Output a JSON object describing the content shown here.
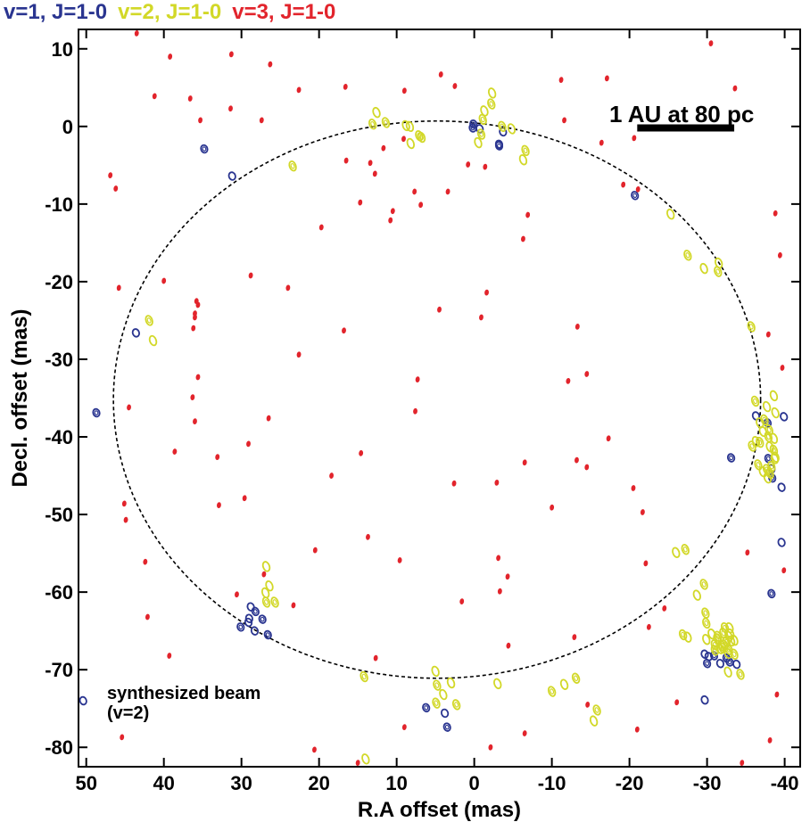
{
  "chart_data": {
    "type": "scatter",
    "xlabel": "R.A offset (mas)",
    "ylabel": "Decl. offset (mas)",
    "xlim": [
      51,
      -42
    ],
    "ylim": [
      -82.5,
      12.5
    ],
    "xticks": [
      50,
      40,
      30,
      20,
      10,
      0,
      -10,
      -20,
      -30,
      -40
    ],
    "yticks": [
      10,
      0,
      -10,
      -20,
      -30,
      -40,
      -50,
      -60,
      -70,
      -80
    ],
    "grid": false,
    "legend_position": "top-left",
    "scale_bar": {
      "label": "1 AU at 80 pc",
      "length_mas": 12.5,
      "x_start": -21,
      "y": -0.2
    },
    "beam_note": {
      "line1": "synthesized beam",
      "line2": "(v=2)"
    },
    "ring": {
      "center": [
        4.8,
        -35.2
      ],
      "rx_mas": 41.7,
      "ry_mas": 35.9,
      "color": "#000000"
    },
    "series": [
      {
        "name": "v=1, J=1-0",
        "color": "#2a3590",
        "points": [
          [
            0.2,
            -0.2
          ],
          [
            -0.7,
            -0.3
          ],
          [
            0.1,
            0.3
          ],
          [
            -3.7,
            -0.7
          ],
          [
            -3.2,
            -2.5
          ],
          [
            -3.2,
            -2.3
          ],
          [
            34.8,
            -2.9
          ],
          [
            31.2,
            -6.4
          ],
          [
            -20.7,
            -8.9
          ],
          [
            43.6,
            -26.6
          ],
          [
            48.7,
            -36.9
          ],
          [
            -36.3,
            -37.3
          ],
          [
            -37.8,
            -38.2
          ],
          [
            -39.9,
            -37.4
          ],
          [
            -37.9,
            -42.8
          ],
          [
            -38.3,
            -44.1
          ],
          [
            -38.4,
            -45.3
          ],
          [
            -39.6,
            -46.5
          ],
          [
            -33.1,
            -42.7
          ],
          [
            -39.6,
            -53.6
          ],
          [
            -38.3,
            -60.2
          ],
          [
            28.8,
            -61.9
          ],
          [
            28.2,
            -62.5
          ],
          [
            29.0,
            -63.4
          ],
          [
            27.3,
            -63.5
          ],
          [
            28.3,
            -65.0
          ],
          [
            26.6,
            -65.5
          ],
          [
            29.1,
            -63.9
          ],
          [
            30.1,
            -64.5
          ],
          [
            -29.7,
            -68.0
          ],
          [
            -30.9,
            -68.2
          ],
          [
            -31.7,
            -69.2
          ],
          [
            -32.9,
            -69.0
          ],
          [
            -33.8,
            -69.3
          ],
          [
            -32.5,
            -68.5
          ],
          [
            -30.2,
            -68.3
          ],
          [
            -30.0,
            -69.2
          ],
          [
            -29.7,
            -73.9
          ],
          [
            6.2,
            -74.9
          ],
          [
            3.8,
            -75.6
          ],
          [
            3.5,
            -77.4
          ],
          [
            50.4,
            -74.0
          ]
        ]
      },
      {
        "name": "v=2, J=1-0",
        "color": "#d2d828",
        "points": [
          [
            13.1,
            0.3
          ],
          [
            12.6,
            1.8
          ],
          [
            11.4,
            0.5
          ],
          [
            8.8,
            0.1
          ],
          [
            7.1,
            -1.2
          ],
          [
            8.2,
            -2.2
          ],
          [
            6.8,
            -1.4
          ],
          [
            8.3,
            0.0
          ],
          [
            -1.1,
            0.9
          ],
          [
            -1.3,
            2.0
          ],
          [
            -2.2,
            2.9
          ],
          [
            -2.3,
            4.3
          ],
          [
            -0.9,
            -1.0
          ],
          [
            -0.5,
            -2.1
          ],
          [
            -3.6,
            0.0
          ],
          [
            -4.8,
            -0.3
          ],
          [
            -6.6,
            -3.1
          ],
          [
            -6.3,
            -4.3
          ],
          [
            23.4,
            -5.1
          ],
          [
            -25.3,
            -11.3
          ],
          [
            -27.5,
            -16.6
          ],
          [
            -29.6,
            -18.3
          ],
          [
            -31.4,
            -18.7
          ],
          [
            -31.5,
            -17.6
          ],
          [
            41.9,
            -25.0
          ],
          [
            41.4,
            -27.6
          ],
          [
            -35.7,
            -25.8
          ],
          [
            -38.8,
            -42.6
          ],
          [
            -38.1,
            -44.7
          ],
          [
            -37.2,
            -44.5
          ],
          [
            -36.6,
            -43.6
          ],
          [
            -36.8,
            -38.2
          ],
          [
            -36.2,
            -35.4
          ],
          [
            -38.6,
            -34.7
          ],
          [
            -37.4,
            -37.8
          ],
          [
            -36.3,
            -40.6
          ],
          [
            -35.8,
            -41.2
          ],
          [
            -38.1,
            -41.3
          ],
          [
            -38.3,
            -43.8
          ],
          [
            -37.7,
            -36.1
          ],
          [
            -38.0,
            -39.1
          ],
          [
            -38.8,
            -36.9
          ],
          [
            -37.9,
            -40.0
          ],
          [
            -37.2,
            -39.3
          ],
          [
            -36.8,
            -40.7
          ],
          [
            -38.6,
            -40.2
          ],
          [
            -38.6,
            -41.7
          ],
          [
            -38.7,
            -42.8
          ],
          [
            -37.7,
            -44.2
          ],
          [
            -37.8,
            -45.3
          ],
          [
            -29.6,
            -59.0
          ],
          [
            -28.7,
            -60.4
          ],
          [
            -29.8,
            -62.7
          ],
          [
            -29.9,
            -66.1
          ],
          [
            -31.3,
            -66.0
          ],
          [
            -32.2,
            -66.8
          ],
          [
            -32.1,
            -65.3
          ],
          [
            -31.9,
            -66.9
          ],
          [
            -31.0,
            -67.5
          ],
          [
            -32.7,
            -67.9
          ],
          [
            -33.5,
            -68.0
          ],
          [
            -32.8,
            -65.7
          ],
          [
            -32.5,
            -66.4
          ],
          [
            -32.9,
            -64.6
          ],
          [
            -31.4,
            -65.7
          ],
          [
            -33.1,
            -66.3
          ],
          [
            -32.0,
            -67.2
          ],
          [
            -31.7,
            -67.3
          ],
          [
            -32.8,
            -67.4
          ],
          [
            -33.5,
            -66.2
          ],
          [
            -29.9,
            -64.0
          ],
          [
            -33.0,
            -65.4
          ],
          [
            -32.3,
            -64.6
          ],
          [
            -30.6,
            -65.4
          ],
          [
            -31.0,
            -66.8
          ],
          [
            -32.7,
            -70.3
          ],
          [
            -34.3,
            -70.6
          ],
          [
            -27.5,
            -65.8
          ],
          [
            -26.9,
            -65.5
          ],
          [
            -26.0,
            -54.9
          ],
          [
            -27.2,
            -54.5
          ],
          [
            26.9,
            -60.1
          ],
          [
            26.8,
            -61.3
          ],
          [
            26.4,
            -59.2
          ],
          [
            25.7,
            -61.3
          ],
          [
            26.8,
            -56.7
          ],
          [
            14.2,
            -70.9
          ],
          [
            5.0,
            -70.2
          ],
          [
            4.8,
            -72.0
          ],
          [
            4.0,
            -73.2
          ],
          [
            4.9,
            -74.3
          ],
          [
            3.0,
            -71.7
          ],
          [
            2.3,
            -74.5
          ],
          [
            -3.0,
            -71.8
          ],
          [
            -10.0,
            -72.8
          ],
          [
            -11.6,
            -71.9
          ],
          [
            -13.1,
            -71.1
          ],
          [
            -15.4,
            -76.6
          ],
          [
            -15.8,
            -75.2
          ],
          [
            14.0,
            -81.5
          ]
        ]
      },
      {
        "name": "v=3, J=1-0",
        "color": "#e2242c",
        "points": [
          [
            35.8,
            -22.5
          ],
          [
            36.0,
            -24.1
          ],
          [
            36.2,
            -26.0
          ],
          [
            35.6,
            -23.0
          ],
          [
            36.0,
            -24.6
          ],
          [
            35.6,
            -32.3
          ],
          [
            36.3,
            -34.9
          ],
          [
            36.0,
            -38.0
          ],
          [
            33.1,
            -42.6
          ],
          [
            32.9,
            -48.8
          ],
          [
            30.6,
            -60.3
          ],
          [
            29.6,
            -47.9
          ],
          [
            26.5,
            -37.6
          ],
          [
            27.1,
            -57.7
          ],
          [
            23.3,
            -61.7
          ],
          [
            20.5,
            -54.6
          ],
          [
            18.4,
            -45.0
          ],
          [
            14.7,
            -9.8
          ],
          [
            12.8,
            -6.1
          ],
          [
            16.5,
            -4.4
          ],
          [
            16.6,
            5.1
          ],
          [
            4.3,
            6.7
          ],
          [
            2.5,
            5.2
          ],
          [
            -11.2,
            6.0
          ],
          [
            -11.6,
            0.8
          ],
          [
            -17.1,
            6.2
          ],
          [
            -16.4,
            -2.1
          ],
          [
            -20.6,
            -1.5
          ],
          [
            -21.1,
            -8.1
          ],
          [
            -19.2,
            -7.5
          ],
          [
            -30.5,
            10.7
          ],
          [
            -33.6,
            4.9
          ],
          [
            -38.8,
            -11.2
          ],
          [
            -39.4,
            -16.6
          ],
          [
            -37.9,
            -26.8
          ],
          [
            -39.7,
            -31.1
          ],
          [
            -35.2,
            -54.9
          ],
          [
            -39.9,
            -57.2
          ],
          [
            -39.0,
            -73.2
          ],
          [
            -38.1,
            -79.1
          ],
          [
            -34.5,
            -82.0
          ],
          [
            -26.1,
            -74.2
          ],
          [
            -22.5,
            -64.5
          ],
          [
            -21.0,
            -77.7
          ],
          [
            -14.6,
            -74.5
          ],
          [
            -12.9,
            -65.8
          ],
          [
            -6.5,
            -78.2
          ],
          [
            -4.4,
            -66.9
          ],
          [
            -2.1,
            -80.0
          ],
          [
            9.0,
            -77.4
          ],
          [
            12.7,
            -68.5
          ],
          [
            13.7,
            -52.9
          ],
          [
            9.6,
            -55.9
          ],
          [
            14.6,
            -42.1
          ],
          [
            7.3,
            -32.6
          ],
          [
            7.6,
            -36.7
          ],
          [
            2.6,
            -46.0
          ],
          [
            -4.3,
            -58.0
          ],
          [
            -13.2,
            -43.0
          ],
          [
            -14.5,
            -43.9
          ],
          [
            -10.0,
            -49.1
          ],
          [
            -6.5,
            -43.3
          ],
          [
            -0.9,
            -24.6
          ],
          [
            -1.6,
            -21.4
          ],
          [
            -3.1,
            -55.6
          ],
          [
            -3.3,
            -59.9
          ],
          [
            -12.1,
            -32.8
          ],
          [
            -20.5,
            -46.6
          ],
          [
            -21.7,
            -49.7
          ],
          [
            -22.1,
            -56.3
          ],
          [
            -24.5,
            -62.1
          ],
          [
            4.5,
            -23.6
          ],
          [
            -13.3,
            -25.8
          ],
          [
            -14.5,
            -31.9
          ],
          [
            -17.3,
            -40.2
          ],
          [
            -2.9,
            -45.9
          ],
          [
            1.6,
            -61.2
          ],
          [
            10.5,
            -10.9
          ],
          [
            10.8,
            -12.1
          ],
          [
            6.9,
            -10.1
          ],
          [
            24.0,
            -20.8
          ],
          [
            28.8,
            -19.2
          ],
          [
            19.7,
            -13.0
          ],
          [
            16.8,
            -26.3
          ],
          [
            29.1,
            -40.9
          ],
          [
            22.6,
            -29.4
          ],
          [
            40.0,
            -19.9
          ],
          [
            38.6,
            -41.9
          ],
          [
            45.8,
            -20.8
          ],
          [
            44.5,
            -36.2
          ],
          [
            46.9,
            -6.3
          ],
          [
            46.2,
            -8.0
          ],
          [
            45.1,
            -48.6
          ],
          [
            44.9,
            -50.7
          ],
          [
            42.4,
            -56.1
          ],
          [
            42.1,
            -63.2
          ],
          [
            39.3,
            -68.2
          ],
          [
            45.4,
            -78.7
          ],
          [
            20.6,
            -80.3
          ],
          [
            15.0,
            -82.0
          ],
          [
            43.5,
            12.0
          ],
          [
            39.2,
            9.0
          ],
          [
            31.3,
            9.3
          ],
          [
            26.3,
            8.0
          ],
          [
            22.6,
            4.7
          ],
          [
            35.3,
            0.8
          ],
          [
            31.4,
            2.3
          ],
          [
            41.2,
            3.9
          ],
          [
            36.6,
            3.6
          ],
          [
            27.4,
            0.8
          ],
          [
            9.0,
            4.6
          ],
          [
            13.4,
            -4.7
          ],
          [
            11.7,
            -2.8
          ],
          [
            9.1,
            -1.6
          ],
          [
            0.8,
            -4.9
          ],
          [
            -1.4,
            -5.2
          ],
          [
            3.4,
            -8.4
          ],
          [
            7.7,
            -8.4
          ],
          [
            -6.9,
            -11.4
          ],
          [
            -6.3,
            -14.5
          ]
        ]
      }
    ]
  }
}
